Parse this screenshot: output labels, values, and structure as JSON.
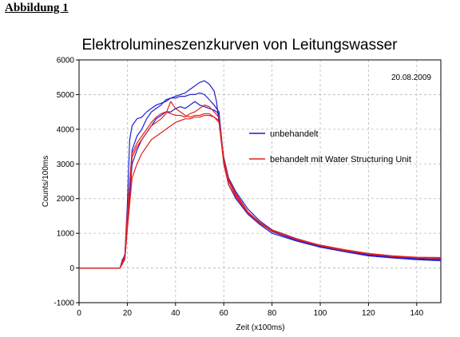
{
  "page": {
    "heading": "Abbildung 1"
  },
  "chart_data": {
    "type": "line",
    "title": "Elektrolumineszenzkurven von Leitungswasser",
    "date_annotation": "20.08.2009",
    "xlabel": "Zeit (x100ms)",
    "ylabel": "Counts/100ms",
    "xlim": [
      0,
      150
    ],
    "ylim": [
      -1000,
      6000
    ],
    "x_ticks": [
      "0",
      "20",
      "40",
      "60",
      "80",
      "100",
      "120",
      "140"
    ],
    "y_ticks": [
      "-1000",
      "0",
      "1000",
      "2000",
      "3000",
      "4000",
      "5000",
      "6000"
    ],
    "grid": true,
    "legend_position": "right-middle",
    "colors": {
      "unbehandelt": "#1f1fd0",
      "behandelt": "#e02020"
    },
    "series": [
      {
        "name": "unbehandelt",
        "color": "#1f1fd0",
        "x": [
          0,
          17,
          18,
          19,
          20,
          21,
          22,
          24,
          26,
          28,
          30,
          32,
          34,
          36,
          38,
          40,
          42,
          44,
          46,
          48,
          50,
          52,
          54,
          56,
          57,
          58,
          60,
          62,
          65,
          70,
          75,
          80,
          90,
          100,
          110,
          120,
          130,
          140,
          150
        ],
        "y": [
          0,
          0,
          200,
          400,
          1800,
          3700,
          4100,
          4300,
          4350,
          4500,
          4600,
          4700,
          4750,
          4800,
          4900,
          4950,
          5000,
          5050,
          5150,
          5250,
          5350,
          5400,
          5300,
          5100,
          4800,
          4200,
          3200,
          2600,
          2200,
          1700,
          1350,
          1100,
          850,
          650,
          500,
          380,
          320,
          270,
          250
        ]
      },
      {
        "name": "",
        "color": "#1f1fd0",
        "x": [
          0,
          17,
          18,
          19,
          20,
          22,
          24,
          26,
          28,
          30,
          32,
          34,
          36,
          38,
          40,
          42,
          44,
          46,
          48,
          50,
          52,
          54,
          56,
          58,
          60,
          62,
          65,
          70,
          75,
          80,
          90,
          100,
          110,
          120,
          130,
          140,
          150
        ],
        "y": [
          0,
          0,
          250,
          350,
          1500,
          3400,
          3800,
          4000,
          4300,
          4500,
          4600,
          4700,
          4850,
          4900,
          4900,
          4950,
          4950,
          5000,
          5000,
          5050,
          5000,
          4850,
          4700,
          4500,
          3100,
          2500,
          2100,
          1600,
          1300,
          1050,
          800,
          620,
          480,
          360,
          300,
          250,
          220
        ]
      },
      {
        "name": "",
        "color": "#1f1fd0",
        "x": [
          0,
          17,
          18,
          19,
          20,
          22,
          24,
          26,
          28,
          30,
          32,
          34,
          36,
          38,
          40,
          42,
          44,
          46,
          48,
          50,
          52,
          54,
          56,
          58,
          60,
          62,
          65,
          70,
          75,
          80,
          90,
          100,
          110,
          120,
          130,
          140,
          150
        ],
        "y": [
          0,
          0,
          180,
          300,
          1200,
          3000,
          3400,
          3700,
          3900,
          4100,
          4300,
          4400,
          4500,
          4500,
          4600,
          4650,
          4600,
          4700,
          4800,
          4700,
          4650,
          4600,
          4550,
          4450,
          3000,
          2400,
          2000,
          1550,
          1250,
          1000,
          780,
          600,
          470,
          350,
          290,
          240,
          210
        ]
      },
      {
        "name": "behandelt mit Water Structuring Unit",
        "color": "#e02020",
        "x": [
          0,
          17,
          18,
          19,
          20,
          22,
          24,
          26,
          28,
          30,
          32,
          34,
          36,
          38,
          40,
          42,
          44,
          46,
          48,
          50,
          52,
          54,
          56,
          58,
          60,
          62,
          65,
          70,
          75,
          80,
          90,
          100,
          110,
          120,
          130,
          140,
          150
        ],
        "y": [
          0,
          0,
          150,
          300,
          1400,
          3200,
          3500,
          3700,
          3900,
          4100,
          4200,
          4300,
          4450,
          4800,
          4600,
          4500,
          4400,
          4350,
          4400,
          4400,
          4450,
          4450,
          4350,
          4250,
          3100,
          2500,
          2100,
          1600,
          1300,
          1080,
          820,
          640,
          500,
          400,
          330,
          290,
          280
        ]
      },
      {
        "name": "",
        "color": "#e02020",
        "x": [
          0,
          17,
          18,
          19,
          20,
          22,
          24,
          26,
          28,
          30,
          32,
          34,
          36,
          38,
          40,
          42,
          44,
          46,
          48,
          50,
          52,
          54,
          56,
          58,
          60,
          62,
          65,
          70,
          75,
          80,
          90,
          100,
          110,
          120,
          130,
          140,
          150
        ],
        "y": [
          0,
          0,
          120,
          250,
          1100,
          2600,
          3000,
          3300,
          3500,
          3700,
          3800,
          3900,
          4000,
          4100,
          4200,
          4250,
          4300,
          4300,
          4350,
          4350,
          4400,
          4400,
          4350,
          4200,
          3000,
          2400,
          2050,
          1580,
          1280,
          1060,
          830,
          650,
          520,
          410,
          340,
          300,
          290
        ]
      },
      {
        "name": "",
        "color": "#e02020",
        "x": [
          0,
          17,
          18,
          19,
          20,
          22,
          24,
          26,
          28,
          30,
          32,
          34,
          36,
          38,
          40,
          42,
          44,
          46,
          48,
          50,
          52,
          54,
          56,
          58,
          60,
          62,
          65,
          70,
          75,
          80,
          90,
          100,
          110,
          120,
          130,
          140,
          150
        ],
        "y": [
          0,
          0,
          200,
          350,
          1600,
          3300,
          3600,
          3800,
          4000,
          4200,
          4350,
          4450,
          4500,
          4450,
          4400,
          4400,
          4350,
          4450,
          4500,
          4600,
          4700,
          4650,
          4500,
          4350,
          3150,
          2550,
          2150,
          1620,
          1310,
          1090,
          840,
          660,
          530,
          420,
          350,
          310,
          300
        ]
      }
    ]
  }
}
